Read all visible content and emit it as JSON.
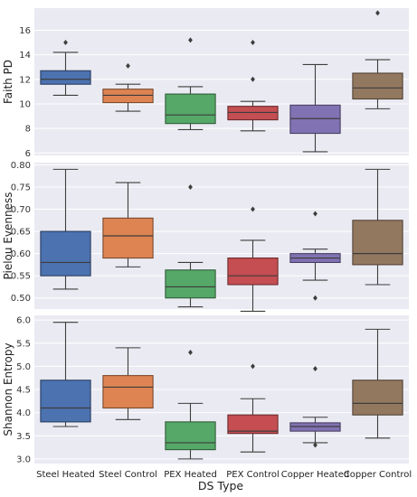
{
  "chart_data": {
    "type": "box",
    "xlabel": "DS Type",
    "categories": [
      "Steel Heated",
      "Steel Control",
      "PEX Heated",
      "PEX Control",
      "Copper Heated",
      "Copper Control"
    ],
    "colors": [
      "#4c72b0",
      "#dd8452",
      "#55a868",
      "#c44e52",
      "#8172b3",
      "#937860"
    ],
    "panels": [
      {
        "ylabel": "Faith PD",
        "ylim": [
          5.8,
          17.8
        ],
        "yticks": [
          6,
          8,
          10,
          12,
          14,
          16
        ],
        "yticklabels": [
          "6",
          "8",
          "10",
          "12",
          "14",
          "16"
        ],
        "boxes": [
          {
            "whislo": 10.7,
            "q1": 11.6,
            "med": 12.0,
            "q3": 12.7,
            "whishi": 14.2,
            "fliers": [
              15.0
            ]
          },
          {
            "whislo": 9.4,
            "q1": 10.1,
            "med": 10.7,
            "q3": 11.2,
            "whishi": 11.6,
            "fliers": [
              13.1
            ]
          },
          {
            "whislo": 7.9,
            "q1": 8.4,
            "med": 9.1,
            "q3": 10.8,
            "whishi": 11.4,
            "fliers": [
              15.2
            ]
          },
          {
            "whislo": 7.8,
            "q1": 8.7,
            "med": 9.3,
            "q3": 9.8,
            "whishi": 10.2,
            "fliers": [
              12.0,
              15.0
            ]
          },
          {
            "whislo": 6.1,
            "q1": 7.6,
            "med": 8.8,
            "q3": 9.9,
            "whishi": 13.2,
            "fliers": []
          },
          {
            "whislo": 9.6,
            "q1": 10.4,
            "med": 11.3,
            "q3": 12.5,
            "whishi": 13.6,
            "fliers": [
              17.4
            ]
          }
        ]
      },
      {
        "ylabel": "Pielou Evenness",
        "ylim": [
          0.475,
          0.805
        ],
        "yticks": [
          0.5,
          0.55,
          0.6,
          0.65,
          0.7,
          0.75,
          0.8
        ],
        "yticklabels": [
          "0.50",
          "0.55",
          "0.60",
          "0.65",
          "0.70",
          "0.75",
          "0.80"
        ],
        "boxes": [
          {
            "whislo": 0.52,
            "q1": 0.55,
            "med": 0.58,
            "q3": 0.65,
            "whishi": 0.79,
            "fliers": []
          },
          {
            "whislo": 0.57,
            "q1": 0.59,
            "med": 0.64,
            "q3": 0.68,
            "whishi": 0.76,
            "fliers": []
          },
          {
            "whislo": 0.48,
            "q1": 0.5,
            "med": 0.525,
            "q3": 0.563,
            "whishi": 0.58,
            "fliers": [
              0.75
            ]
          },
          {
            "whislo": 0.47,
            "q1": 0.53,
            "med": 0.55,
            "q3": 0.59,
            "whishi": 0.63,
            "fliers": [
              0.7
            ]
          },
          {
            "whislo": 0.54,
            "q1": 0.58,
            "med": 0.59,
            "q3": 0.6,
            "whishi": 0.61,
            "fliers": [
              0.69,
              0.5
            ]
          },
          {
            "whislo": 0.53,
            "q1": 0.575,
            "med": 0.6,
            "q3": 0.675,
            "whishi": 0.79,
            "fliers": []
          }
        ]
      },
      {
        "ylabel": "Shannon Entropy",
        "ylim": [
          2.9,
          6.1
        ],
        "yticks": [
          3.0,
          3.5,
          4.0,
          4.5,
          5.0,
          5.5,
          6.0
        ],
        "yticklabels": [
          "3.0",
          "3.5",
          "4.0",
          "4.5",
          "5.0",
          "5.5",
          "6.0"
        ],
        "boxes": [
          {
            "whislo": 3.7,
            "q1": 3.8,
            "med": 4.1,
            "q3": 4.7,
            "whishi": 5.95,
            "fliers": []
          },
          {
            "whislo": 3.85,
            "q1": 4.1,
            "med": 4.55,
            "q3": 4.8,
            "whishi": 5.4,
            "fliers": []
          },
          {
            "whislo": 3.0,
            "q1": 3.2,
            "med": 3.35,
            "q3": 3.8,
            "whishi": 4.2,
            "fliers": [
              5.3
            ]
          },
          {
            "whislo": 3.15,
            "q1": 3.55,
            "med": 3.6,
            "q3": 3.95,
            "whishi": 4.3,
            "fliers": [
              5.0
            ]
          },
          {
            "whislo": 3.35,
            "q1": 3.6,
            "med": 3.7,
            "q3": 3.78,
            "whishi": 3.9,
            "fliers": [
              4.95,
              3.3
            ]
          },
          {
            "whislo": 3.45,
            "q1": 3.95,
            "med": 4.2,
            "q3": 4.7,
            "whishi": 5.8,
            "fliers": []
          }
        ]
      }
    ]
  }
}
